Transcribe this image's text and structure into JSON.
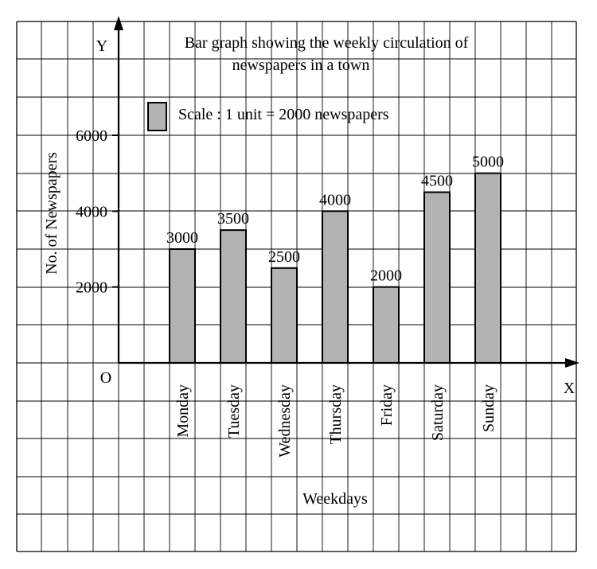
{
  "chart_data": {
    "type": "bar",
    "title": "Bar graph showing the weekly circulation of newspapers in a town",
    "title_lines": [
      "Bar graph showing the weekly circulation of",
      "newspapers in a town"
    ],
    "xlabel": "Weekdays",
    "ylabel": "No. of  Newspapers",
    "x_axis_letter": "X",
    "y_axis_letter": "Y",
    "origin_label": "O",
    "legend": "Scale : 1 unit = 2000 newspapers",
    "categories": [
      "Monday",
      "Tuesday",
      "Wednesday",
      "Thursday",
      "Friday",
      "Saturday",
      "Sunday"
    ],
    "values": [
      3000,
      3500,
      2500,
      4000,
      2000,
      4500,
      5000
    ],
    "data_labels": [
      "3000",
      "3500",
      "2500",
      "4000",
      "2000",
      "4500",
      "5000"
    ],
    "yticks": [
      2000,
      4000,
      6000
    ],
    "ytick_labels": [
      "2000",
      "4000",
      "6000"
    ],
    "ylim": [
      0,
      6000
    ],
    "grid": true,
    "colors": {
      "bar": "#b3b3b3",
      "ink": "#000000",
      "grid": "#000000"
    }
  }
}
